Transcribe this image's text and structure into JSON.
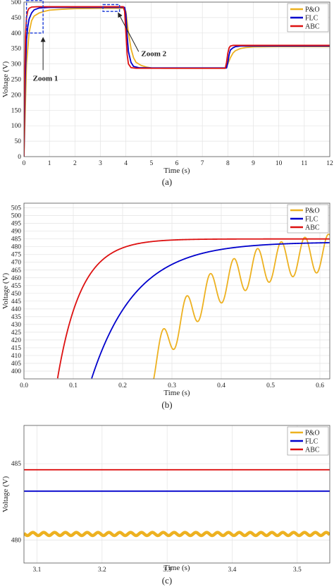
{
  "colors": {
    "po": "#EDB120",
    "flc": "#0000CC",
    "abc": "#DD1111"
  },
  "chart_data": [
    {
      "id": "a",
      "type": "line",
      "caption": "(a)",
      "xlabel": "Time (s)",
      "ylabel": "Voltage (V)",
      "xlim": [
        0,
        12
      ],
      "ylim": [
        0,
        500
      ],
      "xticks": [
        0,
        1,
        2,
        3,
        4,
        5,
        6,
        7,
        8,
        9,
        10,
        11,
        12
      ],
      "yticks": [
        0,
        50,
        100,
        150,
        200,
        250,
        300,
        350,
        400,
        450,
        500
      ],
      "grid": true,
      "legend_position": "top-right",
      "series": [
        {
          "name": "P&O",
          "color": "#EDB120",
          "x": [
            0,
            0.1,
            0.2,
            0.3,
            0.4,
            0.6,
            0.8,
            1.0,
            1.5,
            2,
            3,
            3.9,
            4.0,
            4.1,
            4.2,
            4.3,
            4.4,
            4.6,
            4.8,
            5.0,
            5.5,
            6,
            7,
            7.9,
            8.0,
            8.1,
            8.2,
            8.3,
            8.5,
            8.7,
            9.0,
            10,
            11,
            12
          ],
          "y": [
            0,
            300,
            400,
            440,
            455,
            465,
            470,
            474,
            477,
            479,
            480,
            480,
            470,
            400,
            350,
            320,
            305,
            295,
            290,
            287,
            286,
            286,
            286,
            286,
            300,
            320,
            335,
            343,
            350,
            353,
            355,
            356,
            356,
            356
          ]
        },
        {
          "name": "FLC",
          "color": "#0000CC",
          "x": [
            0,
            0.05,
            0.1,
            0.15,
            0.2,
            0.3,
            0.4,
            0.6,
            1.0,
            2,
            3,
            3.95,
            4.0,
            4.05,
            4.1,
            4.2,
            4.3,
            4.5,
            5,
            6,
            7,
            7.95,
            8.0,
            8.05,
            8.1,
            8.2,
            8.3,
            8.5,
            9,
            10,
            11,
            12
          ],
          "y": [
            0,
            250,
            380,
            420,
            445,
            465,
            475,
            481,
            483,
            483,
            483,
            483,
            460,
            390,
            340,
            305,
            292,
            288,
            287,
            287,
            287,
            287,
            305,
            330,
            345,
            352,
            356,
            358,
            358,
            358,
            358,
            358
          ]
        },
        {
          "name": "ABC",
          "color": "#DD1111",
          "x": [
            0,
            0.03,
            0.06,
            0.1,
            0.15,
            0.2,
            0.3,
            0.5,
            1.0,
            2,
            3,
            3.9,
            3.95,
            4.0,
            4.05,
            4.1,
            4.2,
            4.4,
            5,
            6,
            7,
            7.9,
            7.95,
            8.0,
            8.05,
            8.1,
            8.2,
            8.4,
            9,
            10,
            11,
            12
          ],
          "y": [
            0,
            250,
            390,
            450,
            472,
            480,
            484,
            485,
            485,
            485,
            485,
            485,
            470,
            400,
            330,
            300,
            288,
            286,
            286,
            286,
            286,
            286,
            305,
            335,
            352,
            358,
            360,
            360,
            360,
            360,
            360,
            360
          ]
        }
      ],
      "annotations": {
        "zoom1": "Zoom 1",
        "zoom2": "Zoom 2"
      }
    },
    {
      "id": "b",
      "type": "line",
      "caption": "(b)",
      "xlabel": "Time (s)",
      "ylabel": "Voltage (V)",
      "xlim": [
        0,
        0.62
      ],
      "ylim": [
        395,
        508
      ],
      "xticks": [
        0,
        0.1,
        0.2,
        0.3,
        0.4,
        0.5,
        0.6
      ],
      "yticks": [
        400,
        405,
        410,
        415,
        420,
        425,
        430,
        435,
        440,
        445,
        450,
        455,
        460,
        465,
        470,
        475,
        480,
        485,
        490,
        495,
        500,
        505
      ],
      "grid": true,
      "legend_position": "top-right",
      "series": [
        {
          "name": "P&O",
          "color": "#EDB120",
          "model": "osc",
          "params": {
            "t0": 0.25,
            "A": 85,
            "tau": 0.12,
            "amp": 12,
            "period": 0.048
          }
        },
        {
          "name": "FLC",
          "color": "#0000CC",
          "model": "rise",
          "params": {
            "t0": 0.137,
            "A": 88,
            "tau": 0.09
          }
        },
        {
          "name": "ABC",
          "color": "#DD1111",
          "model": "rise",
          "params": {
            "t0": 0.068,
            "A": 90,
            "tau": 0.048
          }
        }
      ]
    },
    {
      "id": "c",
      "type": "line",
      "caption": "(c)",
      "xlabel": "Time (s)",
      "ylabel": "Voltage (V)",
      "xlim": [
        3.08,
        3.55
      ],
      "ylim": [
        478.5,
        487.5
      ],
      "xticks": [
        3.1,
        3.2,
        3.3,
        3.4,
        3.5
      ],
      "yticks": [
        480,
        485
      ],
      "grid": true,
      "legend_position": "top-right",
      "series": [
        {
          "name": "P&O",
          "color": "#EDB120",
          "model": "ripple",
          "params": {
            "level": 480.4,
            "amp": 0.1,
            "period": 0.0167
          }
        },
        {
          "name": "FLC",
          "color": "#0000CC",
          "model": "flat",
          "params": {
            "level": 483.2
          }
        },
        {
          "name": "ABC",
          "color": "#DD1111",
          "model": "flat",
          "params": {
            "level": 484.6
          }
        }
      ]
    }
  ]
}
